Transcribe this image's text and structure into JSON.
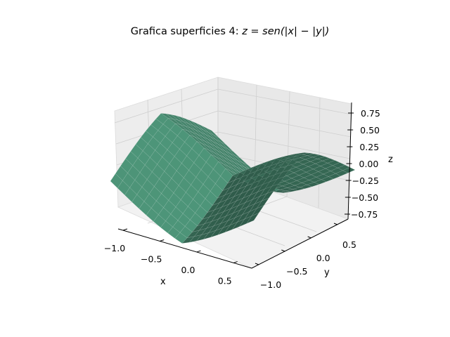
{
  "chart_data": {
    "type": "surface",
    "title_text": "Grafica superficies 4: ",
    "title_math": "z = sen(|x| − |y|)",
    "xlabel": "x",
    "ylabel": "y",
    "zlabel": "z",
    "xlim": [
      -1.0,
      1.0
    ],
    "ylim": [
      -1.0,
      1.0
    ],
    "zlim": [
      -0.84,
      0.84
    ],
    "xticks": [
      "−1.0",
      "−0.5",
      "0.0",
      "0.5"
    ],
    "yticks": [
      "−1.0",
      "−0.5",
      "0.0",
      "0.5"
    ],
    "zticks": [
      "0.75",
      "0.50",
      "0.25",
      "0.00",
      "−0.25",
      "−0.50",
      "−0.75"
    ],
    "function": "sin(|x| - |y|)",
    "grid_resolution": 20,
    "grid": true,
    "surface_color": "#4a8f74",
    "pane_color": "#f2f2f2",
    "grid_color": "#cccccc"
  }
}
